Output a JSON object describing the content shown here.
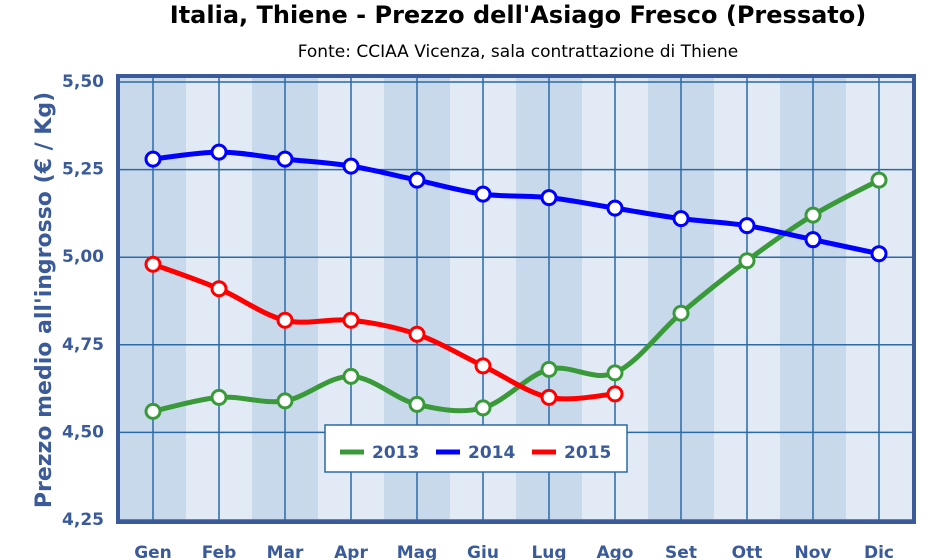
{
  "chart_data": {
    "type": "line",
    "title": "Italia, Thiene - Prezzo dell'Asiago Fresco (Pressato)",
    "subtitle": "Fonte: CCIAA Vicenza, sala contrattazione di Thiene",
    "y_label": "Prezzo medio all'ingrosso (€ / Kg)",
    "categories": [
      "Gen",
      "Feb",
      "Mar",
      "Apr",
      "Mag",
      "Giu",
      "Lug",
      "Ago",
      "Set",
      "Ott",
      "Nov",
      "Dic"
    ],
    "series": [
      {
        "name": "2013",
        "color": "#3a9a3a",
        "values": [
          4.56,
          4.6,
          4.59,
          4.66,
          4.58,
          4.57,
          4.68,
          4.67,
          4.84,
          4.99,
          5.12,
          5.22
        ]
      },
      {
        "name": "2014",
        "color": "#0000ff",
        "values": [
          5.28,
          5.3,
          5.28,
          5.26,
          5.22,
          5.18,
          5.17,
          5.14,
          5.11,
          5.09,
          5.05,
          5.01
        ]
      },
      {
        "name": "2015",
        "color": "#ff0000",
        "values": [
          4.98,
          4.91,
          4.82,
          4.82,
          4.78,
          4.69,
          4.6,
          4.61,
          null,
          null,
          null,
          null
        ]
      }
    ],
    "ylim": [
      4.25,
      5.5
    ],
    "yticks": [
      {
        "value": 4.25,
        "label": "4,25"
      },
      {
        "value": 4.5,
        "label": "4,50"
      },
      {
        "value": 4.75,
        "label": "4,75"
      },
      {
        "value": 5.0,
        "label": "5,00"
      },
      {
        "value": 5.25,
        "label": "5,25"
      },
      {
        "value": 5.5,
        "label": "5,50"
      }
    ],
    "grid": true
  }
}
